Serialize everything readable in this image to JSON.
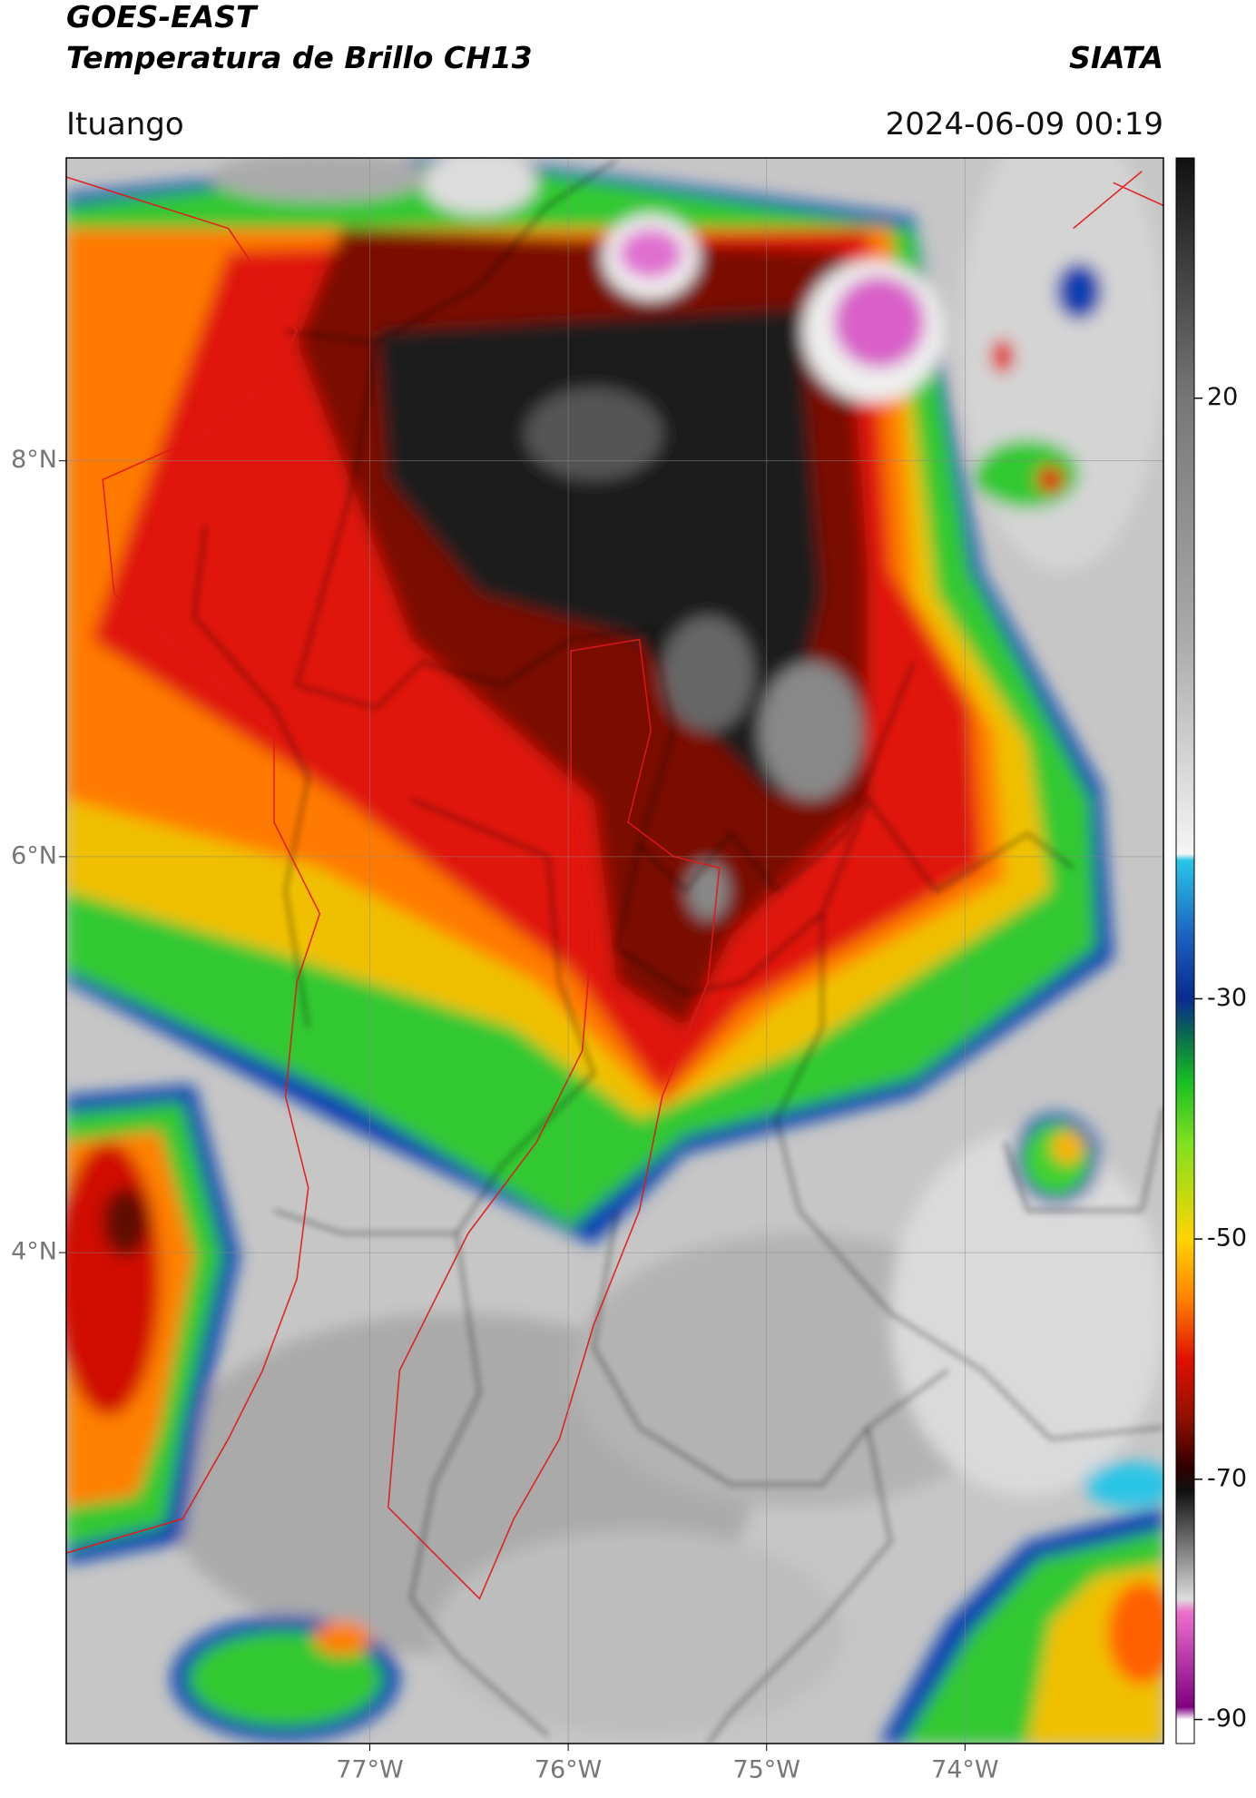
{
  "header": {
    "title": "GOES-EAST",
    "subtitle": "Temperatura de Brillo CH13",
    "organization": "SIATA",
    "region": "Ituango",
    "datetime": "2024-06-09 00:19"
  },
  "map": {
    "xlim": [
      -78.53,
      -73.0
    ],
    "ylim": [
      1.52,
      9.53
    ],
    "xticks": [
      {
        "value": -77,
        "label": "77°W"
      },
      {
        "value": -76,
        "label": "76°W"
      },
      {
        "value": -75,
        "label": "75°W"
      },
      {
        "value": -74,
        "label": "74°W"
      }
    ],
    "yticks": [
      {
        "value": 4,
        "label": "4°N"
      },
      {
        "value": 6,
        "label": "6°N"
      },
      {
        "value": 8,
        "label": "8°N"
      }
    ]
  },
  "colorbar": {
    "ylim": [
      -92,
      40
    ],
    "yticks": [
      -90,
      -70,
      -50,
      -30,
      20
    ]
  }
}
